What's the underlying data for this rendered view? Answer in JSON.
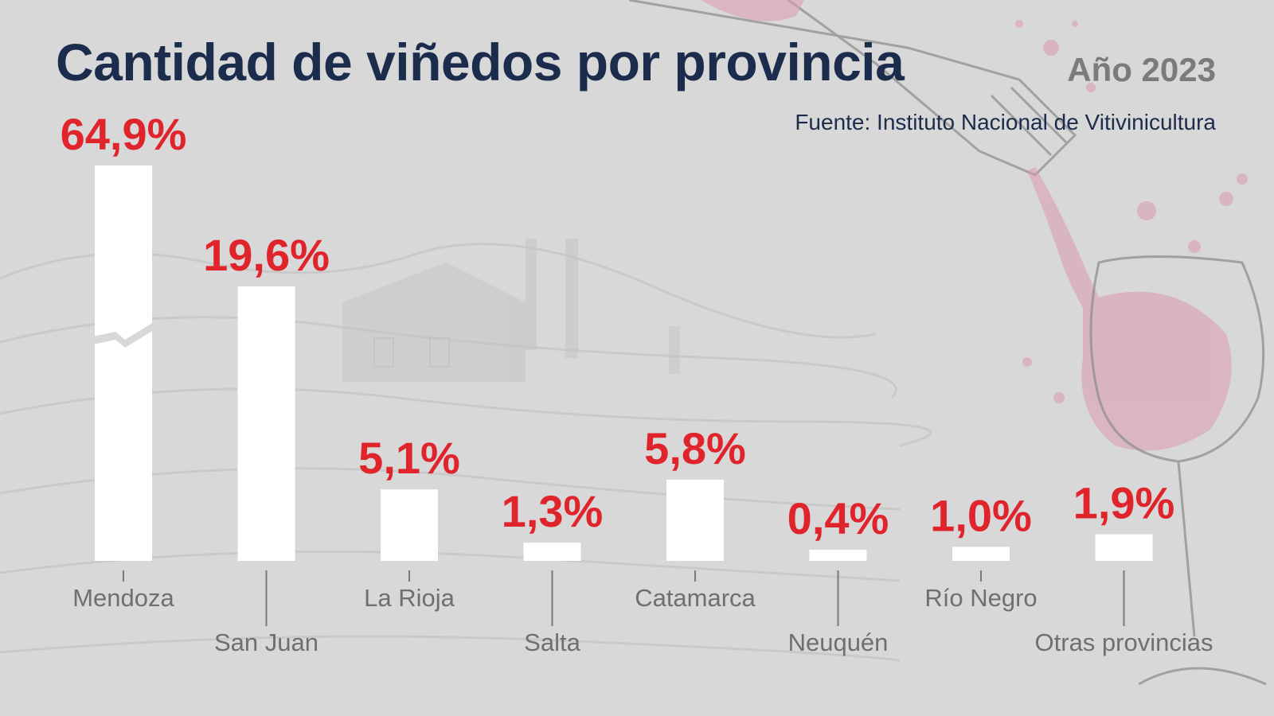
{
  "header": {
    "title": "Cantidad de viñedos por provincia",
    "year": "Año 2023",
    "source": "Fuente: Instituto Nacional de Vitivinicultura"
  },
  "colors": {
    "background": "#d9d8d8",
    "title": "#1b2c4c",
    "bars": "#ffffff",
    "value_labels": "#e0242c",
    "category_labels": "#6f6f6f",
    "year": "#7b7b7b"
  },
  "chart_data": {
    "type": "bar",
    "title": "Cantidad de viñedos por provincia",
    "subtitle": "Año 2023",
    "categories": [
      "Mendoza",
      "San Juan",
      "La Rioja",
      "Salta",
      "Catamarca",
      "Neuquén",
      "Río Negro",
      "Otras provincias"
    ],
    "values": [
      64.9,
      19.6,
      5.1,
      1.3,
      5.8,
      0.4,
      1.0,
      1.9
    ],
    "value_labels": [
      "64,9%",
      "19,6%",
      "5,1%",
      "1,3%",
      "5,8%",
      "0,4%",
      "1,0%",
      "1,9%"
    ],
    "unit": "%",
    "axis_break_on": "Mendoza",
    "xlabel": "",
    "ylabel": "",
    "grid": false,
    "legend": "none"
  }
}
